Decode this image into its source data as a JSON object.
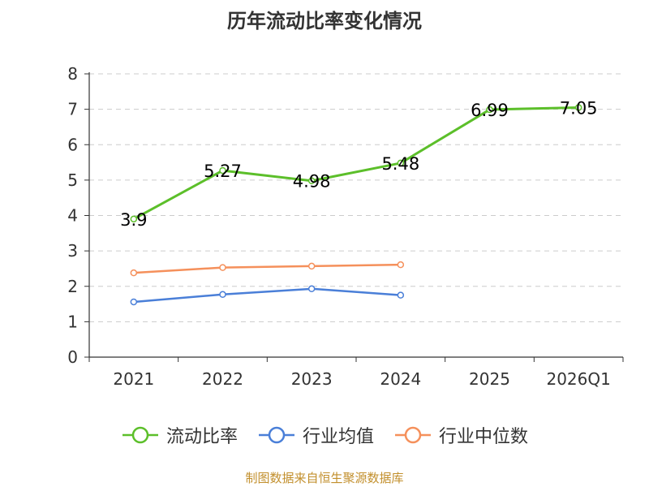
{
  "chart_data": {
    "type": "line",
    "title": "历年流动比率变化情况",
    "categories": [
      "2021",
      "2022",
      "2023",
      "2024",
      "2025",
      "2026Q1"
    ],
    "ylim": [
      0,
      8
    ],
    "yticks": [
      "0",
      "1",
      "2",
      "3",
      "4",
      "5",
      "6",
      "7",
      "8"
    ],
    "grid": true,
    "legend_position": "bottom",
    "series": [
      {
        "name": "流动比率",
        "color": "#5cbf2a",
        "values": [
          3.9,
          5.27,
          4.98,
          5.48,
          6.99,
          7.05
        ],
        "labels": [
          "3.9",
          "5.27",
          "4.98",
          "5.48",
          "6.99",
          "7.05"
        ],
        "show_labels": true
      },
      {
        "name": "行业均值",
        "color": "#4a7fd8",
        "values": [
          1.56,
          1.77,
          1.93,
          1.75,
          null,
          null
        ],
        "show_labels": false
      },
      {
        "name": "行业中位数",
        "color": "#f5905b",
        "values": [
          2.38,
          2.53,
          2.57,
          2.61,
          null,
          null
        ],
        "show_labels": false
      }
    ],
    "source": "制图数据来自恒生聚源数据库"
  }
}
